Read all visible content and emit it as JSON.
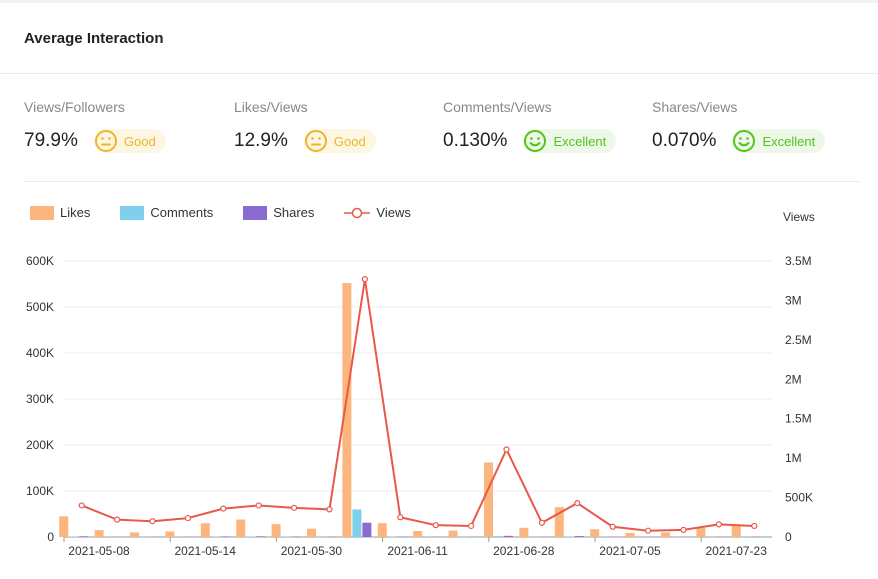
{
  "header": {
    "title": "Average Interaction"
  },
  "metrics": [
    {
      "label": "Views/Followers",
      "value": "79.9%",
      "rating": "Good",
      "face": "neutral-face-icon"
    },
    {
      "label": "Likes/Views",
      "value": "12.9%",
      "rating": "Good",
      "face": "neutral-face-icon"
    },
    {
      "label": "Comments/Views",
      "value": "0.130%",
      "rating": "Excellent",
      "face": "smile-face-icon"
    },
    {
      "label": "Shares/Views",
      "value": "0.070%",
      "rating": "Excellent",
      "face": "smile-face-icon"
    }
  ],
  "colors": {
    "likes": "#fdb57e",
    "comments": "#7fd0ec",
    "shares": "#8c6bd0",
    "views": "#e8594a",
    "good": "#f0b429",
    "excellent": "#52c41a"
  },
  "chart_data": {
    "type": "bar",
    "legend": [
      "Likes",
      "Comments",
      "Shares",
      "Views"
    ],
    "y_right_label": "Views",
    "x_ticks": [
      "2021-05-08",
      "2021-05-14",
      "2021-05-30",
      "2021-06-11",
      "2021-06-28",
      "2021-07-05",
      "2021-07-23"
    ],
    "x_tick_indices": [
      0,
      3,
      6,
      9,
      12,
      15,
      18
    ],
    "y_left_ticks": [
      "0",
      "100K",
      "200K",
      "300K",
      "400K",
      "500K",
      "600K"
    ],
    "y_left_range": [
      0,
      600000
    ],
    "y_right_ticks": [
      "0",
      "500K",
      "1M",
      "1.5M",
      "2M",
      "2.5M",
      "3M",
      "3.5M"
    ],
    "y_right_range": [
      0,
      3500000
    ],
    "categories": 20,
    "series": [
      {
        "name": "Likes",
        "axis": "left",
        "values": [
          45000,
          15000,
          10000,
          12000,
          30000,
          38000,
          28000,
          18000,
          552000,
          30000,
          13000,
          14000,
          162000,
          20000,
          65000,
          17000,
          9000,
          10000,
          20000,
          27000
        ]
      },
      {
        "name": "Comments",
        "axis": "left",
        "values": [
          1000,
          500,
          400,
          400,
          700,
          900,
          800,
          500,
          60000,
          700,
          300,
          300,
          2000,
          400,
          1200,
          400,
          200,
          200,
          400,
          500
        ]
      },
      {
        "name": "Shares",
        "axis": "left",
        "values": [
          1500,
          500,
          300,
          400,
          1200,
          1500,
          1000,
          600,
          31000,
          800,
          300,
          400,
          2500,
          500,
          2000,
          500,
          200,
          200,
          500,
          600
        ]
      },
      {
        "name": "Views",
        "axis": "right",
        "values": [
          400000,
          220000,
          200000,
          240000,
          360000,
          400000,
          370000,
          350000,
          3270000,
          250000,
          150000,
          140000,
          1110000,
          180000,
          430000,
          130000,
          80000,
          90000,
          160000,
          140000
        ]
      }
    ]
  }
}
